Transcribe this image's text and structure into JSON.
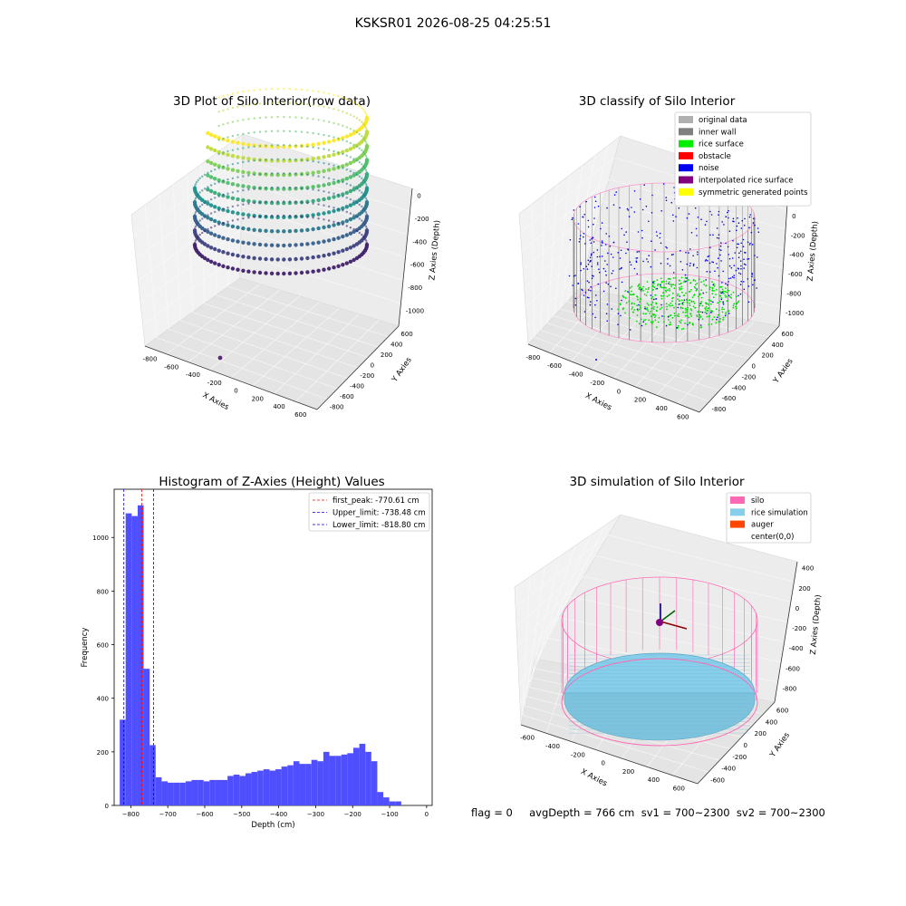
{
  "suptitle": "KSKSR01 2026-08-25 04:25:51",
  "footer": "flag = 0     avgDepth = 766 cm  sv1 = 700~2300  sv2 = 700~2300",
  "chart_data": [
    {
      "type": "scatter",
      "title": "3D Plot of Silo Interior(row data)",
      "xlabel": "X Axies",
      "ylabel": "Y Axies",
      "zlabel": "Z Axies (Depth)",
      "xticks": [
        "-800",
        "-600",
        "-400",
        "-200",
        "0",
        "200",
        "400",
        "600"
      ],
      "yticks": [
        "-800",
        "-600",
        "-400",
        "-200",
        "0",
        "200",
        "400",
        "600"
      ],
      "zticks": [
        "0",
        "-200",
        "-400",
        "-600",
        "-800",
        "-1000"
      ],
      "xlim": [
        -850,
        650
      ],
      "ylim": [
        -850,
        650
      ],
      "zlim": [
        -1050,
        50
      ],
      "colormap": "viridis",
      "outlier_point": {
        "x": -120,
        "y": -600,
        "z": -1000
      }
    },
    {
      "type": "scatter",
      "title": "3D classify of Silo Interior",
      "xlabel": "X Axies",
      "ylabel": "Y Axies",
      "zlabel": "Z Axies (Depth)",
      "xticks": [
        "-800",
        "-600",
        "-400",
        "-200",
        "0",
        "200",
        "400",
        "600"
      ],
      "yticks": [
        "-800",
        "-600",
        "-400",
        "-200",
        "0",
        "200",
        "400",
        "600"
      ],
      "zticks": [
        "200",
        "0",
        "-200",
        "-400",
        "-600",
        "-800",
        "-1000"
      ],
      "legend_position": "top-right",
      "legend": [
        {
          "name": "original data",
          "color": "#b0b0b0"
        },
        {
          "name": "inner wall",
          "color": "#808080"
        },
        {
          "name": "rice surface",
          "color": "#00ee00"
        },
        {
          "name": "obstacle",
          "color": "#ff0000"
        },
        {
          "name": "noise",
          "color": "#0000ee"
        },
        {
          "name": "interpolated rice surface",
          "color": "#800080"
        },
        {
          "name": "symmetric generated points",
          "color": "#ffff00"
        }
      ]
    },
    {
      "type": "bar",
      "title": "Histogram of Z-Axies (Height) Values",
      "xlabel": "Depth (cm)",
      "ylabel": "Frequency",
      "xlim": [
        -845,
        15
      ],
      "ylim": [
        0,
        1180
      ],
      "xticks": [
        -800,
        -700,
        -600,
        -500,
        -400,
        -300,
        -200,
        -100,
        0
      ],
      "yticks": [
        0,
        200,
        400,
        600,
        800,
        1000
      ],
      "bin_start": -830,
      "bin_width": 16.2,
      "values": [
        320,
        1090,
        1080,
        1120,
        510,
        225,
        105,
        90,
        85,
        85,
        85,
        90,
        95,
        95,
        90,
        95,
        95,
        95,
        110,
        115,
        110,
        120,
        125,
        130,
        135,
        130,
        135,
        145,
        150,
        165,
        155,
        155,
        170,
        165,
        200,
        185,
        185,
        190,
        195,
        215,
        230,
        200,
        165,
        50,
        30,
        15,
        15
      ],
      "lines": [
        {
          "name": "first_peak: -770.61 cm",
          "x": -770.61,
          "color": "#ff0000"
        },
        {
          "name": "Upper_limit: -738.48 cm",
          "x": -738.48,
          "color": "#0000ee"
        },
        {
          "name": "Lower_limit: -818.80 cm",
          "x": -818.8,
          "color": "#0000ee"
        }
      ],
      "bar_color": "#4f4fff",
      "legend_position": "top-right"
    },
    {
      "type": "scatter",
      "title": "3D simulation of Silo Interior",
      "xlabel": "X Axies",
      "ylabel": "Y Axies",
      "zlabel": "Z Axies (Depth)",
      "xticks": [
        "-600",
        "-400",
        "-200",
        "0",
        "200",
        "400",
        "600"
      ],
      "yticks": [
        "-600",
        "-400",
        "-200",
        "0",
        "200",
        "400",
        "600"
      ],
      "zticks": [
        "400",
        "200",
        "0",
        "-200",
        "-400",
        "-600",
        "-800"
      ],
      "legend_position": "top-right",
      "legend": [
        {
          "name": "silo",
          "color": "#ff69b4"
        },
        {
          "name": "rice simulation",
          "color": "#87ceeb"
        },
        {
          "name": "auger",
          "color": "#ff4500"
        },
        {
          "name": "center(0,0)",
          "color": ""
        }
      ]
    }
  ]
}
